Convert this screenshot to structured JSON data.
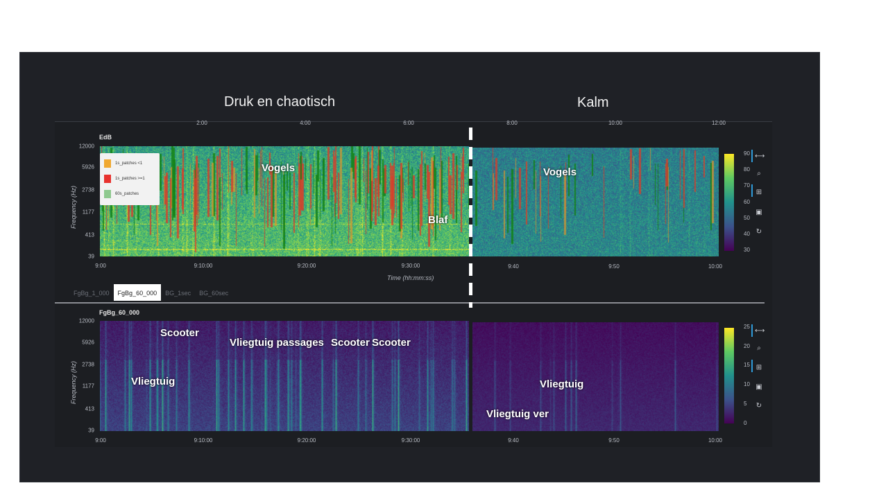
{
  "slide": {
    "title_left": "Druk en chaotisch",
    "title_right": "Kalm"
  },
  "top_axis": {
    "ticks": [
      "2:00",
      "4:00",
      "6:00",
      "8:00",
      "10:00",
      "12:00"
    ]
  },
  "tabs": [
    {
      "label": "FgBg_1_000",
      "active": false
    },
    {
      "label": "FgBg_60_000",
      "active": true
    },
    {
      "label": "BG_1sec",
      "active": false
    },
    {
      "label": "BG_60sec",
      "active": false
    }
  ],
  "annotations": {
    "top_left": [
      "Vogels",
      "Blaf"
    ],
    "top_right": [
      "Vogels"
    ],
    "bottom_left": [
      "Scooter",
      "Vliegtuig passages",
      "Scooter",
      "Scooter",
      "Vliegtuig"
    ],
    "bottom_right": [
      "Vliegtuig",
      "Vliegtuig ver"
    ]
  },
  "tools": {
    "names": [
      "pan-icon",
      "zoom-icon",
      "box-zoom-icon",
      "save-icon",
      "reset-icon"
    ]
  },
  "chart_data": [
    {
      "type": "heatmap",
      "title": "EdB",
      "ylabel": "Frequency (Hz)",
      "xlabel": "Time (hh:mm:ss)",
      "y_ticks": [
        "12000",
        "5926",
        "2738",
        "1177",
        "413",
        "39"
      ],
      "x_ticks_left": [
        "9:00",
        "9:10:00",
        "9:20:00",
        "9:30:00"
      ],
      "x_ticks_right": [
        "9:40",
        "9:50",
        "10:00"
      ],
      "colorbar": {
        "min": 30,
        "max": 90,
        "ticks": [
          "90",
          "80",
          "70",
          "60",
          "50",
          "40",
          "30"
        ],
        "colormap": "viridis"
      },
      "legend": [
        {
          "label": "1s_patches <1",
          "color": "#f0a830"
        },
        {
          "label": "1s_patches >=1",
          "color": "#e8322e"
        },
        {
          "label": "60s_patches",
          "color": "#8fc98f"
        }
      ]
    },
    {
      "type": "heatmap",
      "title": "FgBg_60_000",
      "ylabel": "Frequency (Hz)",
      "y_ticks": [
        "12000",
        "5926",
        "2738",
        "1177",
        "413",
        "39"
      ],
      "x_ticks_left": [
        "9:00",
        "9:10:00",
        "9:20:00",
        "9:30:00"
      ],
      "x_ticks_right": [
        "9:40",
        "9:50",
        "10:00"
      ],
      "colorbar": {
        "min": 0,
        "max": 25,
        "ticks": [
          "25",
          "20",
          "15",
          "10",
          "5",
          "0"
        ],
        "colormap": "viridis"
      }
    }
  ]
}
